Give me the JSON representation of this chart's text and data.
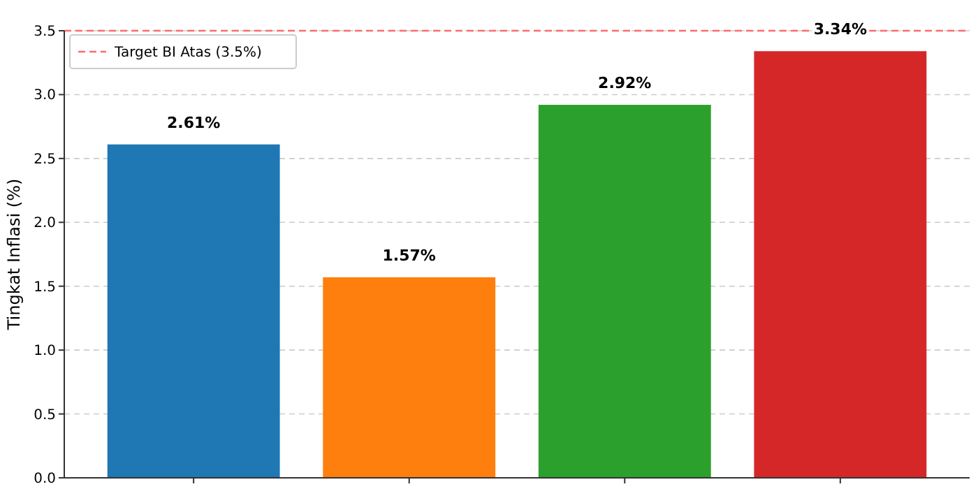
{
  "chart_data": {
    "type": "bar",
    "ylabel": "Tingkat Inflasi (%)",
    "categories": [
      null,
      null,
      null,
      null
    ],
    "values": [
      2.61,
      1.57,
      2.92,
      3.34
    ],
    "colors": [
      "#1f77b4",
      "#ff7f0e",
      "#2ca02c",
      "#d62728"
    ],
    "value_labels": [
      "2.61%",
      "1.57%",
      "2.92%",
      "3.34%"
    ],
    "ylim": [
      0,
      3.5
    ],
    "yticks": [
      {
        "value": 0,
        "label": "0.0"
      },
      {
        "value": 0.5,
        "label": "0.5"
      },
      {
        "value": 1,
        "label": "1.0"
      },
      {
        "value": 1.5,
        "label": "1.5"
      },
      {
        "value": 2,
        "label": "2.0"
      },
      {
        "value": 2.5,
        "label": "2.5"
      },
      {
        "value": 3,
        "label": "3.0"
      },
      {
        "value": 3.5,
        "label": "3.5"
      }
    ],
    "ref_lines": [
      {
        "axis": "y",
        "value": 3.5,
        "label": "Target BI Atas (3.5%)",
        "color": "#ff6b6b",
        "line_style": "dashed"
      }
    ],
    "grid": "y",
    "legend": "top left"
  }
}
